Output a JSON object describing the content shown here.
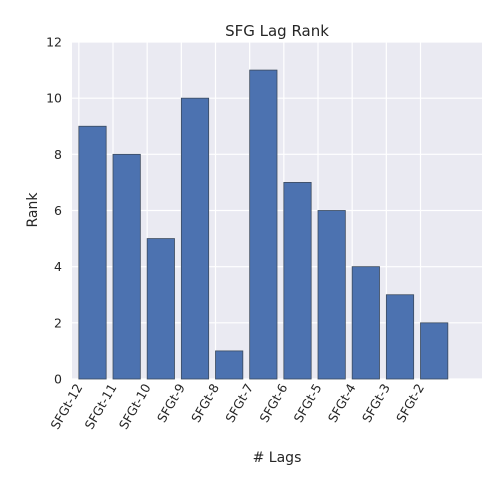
{
  "chart_data": {
    "type": "bar",
    "title": "SFG Lag Rank",
    "xlabel": "# Lags",
    "ylabel": "Rank",
    "categories": [
      "SFGt-12",
      "SFGt-11",
      "SFGt-10",
      "SFGt-9",
      "SFGt-8",
      "SFGt-7",
      "SFGt-6",
      "SFGt-5",
      "SFGt-4",
      "SFGt-3",
      "SFGt-2"
    ],
    "values": [
      9,
      8,
      5,
      10,
      1,
      11,
      7,
      6,
      4,
      3,
      2
    ],
    "ylim": [
      0,
      12
    ],
    "yticks": [
      0,
      2,
      4,
      6,
      8,
      10,
      12
    ],
    "grid": true,
    "legend": "none",
    "colors": {
      "bar": "#4c72b0",
      "bar_edge": "#3b4a5e",
      "plot_background": "#eaeaf2",
      "grid": "#ffffff",
      "text": "#262626"
    }
  }
}
